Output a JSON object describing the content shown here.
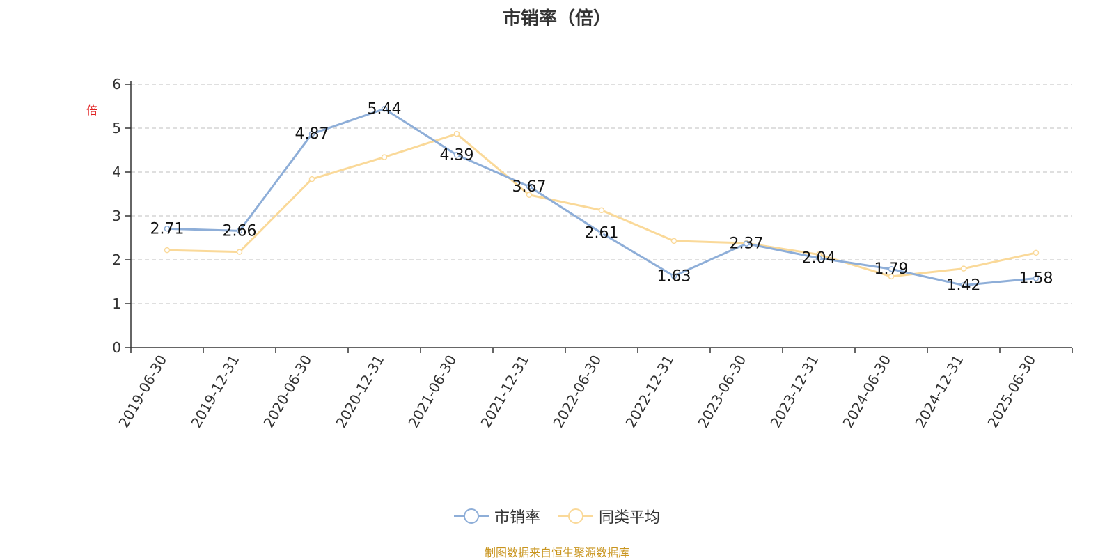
{
  "title": "市销率（倍）",
  "y_unit": "倍",
  "source_note": "制图数据来自恒生聚源数据库",
  "colors": {
    "series_1": "#8eaed8",
    "series_2": "#fad999",
    "y_unit": "#e02020",
    "source_note": "#c9951f",
    "grid": "#cccccc",
    "axis": "#333333"
  },
  "legend": [
    {
      "label": "市销率"
    },
    {
      "label": "同类平均"
    }
  ],
  "chart_data": {
    "type": "line",
    "title": "市销率（倍）",
    "xlabel": "",
    "ylabel": "倍",
    "ylim": [
      0,
      6
    ],
    "yticks": [
      0,
      1,
      2,
      3,
      4,
      5,
      6
    ],
    "grid": true,
    "legend_position": "bottom",
    "categories": [
      "2019-06-30",
      "2019-12-31",
      "2020-06-30",
      "2020-12-31",
      "2021-06-30",
      "2021-12-31",
      "2022-06-30",
      "2022-12-31",
      "2023-06-30",
      "2023-12-31",
      "2024-06-30",
      "2024-12-31",
      "2025-06-30"
    ],
    "series": [
      {
        "name": "市销率",
        "values": [
          2.71,
          2.66,
          4.87,
          5.44,
          4.39,
          3.67,
          2.61,
          1.63,
          2.37,
          2.04,
          1.79,
          1.42,
          1.58
        ],
        "data_labels": [
          "2.71",
          "2.66",
          "4.87",
          "5.44",
          "4.39",
          "3.67",
          "2.61",
          "1.63",
          "2.37",
          "2.04",
          "1.79",
          "1.42",
          "1.58"
        ]
      },
      {
        "name": "同类平均",
        "values": [
          2.22,
          2.18,
          3.84,
          4.34,
          4.87,
          3.48,
          3.13,
          2.43,
          2.38,
          2.12,
          1.62,
          1.8,
          2.16
        ]
      }
    ]
  }
}
